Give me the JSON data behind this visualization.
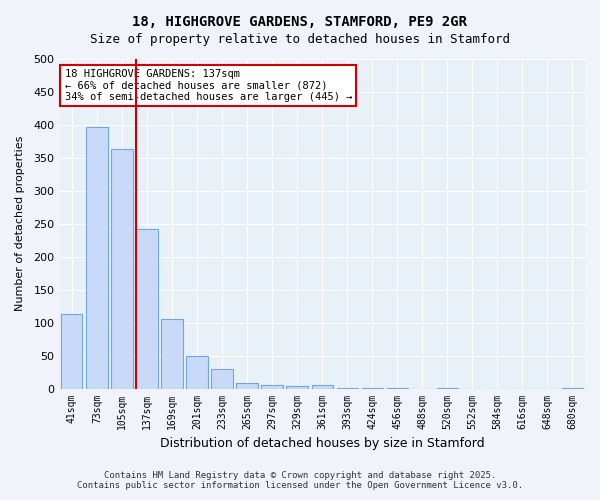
{
  "title_line1": "18, HIGHGROVE GARDENS, STAMFORD, PE9 2GR",
  "title_line2": "Size of property relative to detached houses in Stamford",
  "xlabel": "Distribution of detached houses by size in Stamford",
  "ylabel": "Number of detached properties",
  "categories": [
    "41sqm",
    "73sqm",
    "105sqm",
    "137sqm",
    "169sqm",
    "201sqm",
    "233sqm",
    "265sqm",
    "297sqm",
    "329sqm",
    "361sqm",
    "393sqm",
    "424sqm",
    "456sqm",
    "488sqm",
    "520sqm",
    "552sqm",
    "584sqm",
    "616sqm",
    "648sqm",
    "680sqm"
  ],
  "values": [
    113,
    397,
    363,
    242,
    105,
    50,
    29,
    8,
    5,
    4,
    6,
    1,
    1,
    1,
    0,
    1,
    0,
    0,
    0,
    0,
    1
  ],
  "bar_color": "#c9daf8",
  "bar_edge_color": "#6fa8dc",
  "vline_x": 3,
  "vline_color": "#cc0000",
  "annotation_title": "18 HIGHGROVE GARDENS: 137sqm",
  "annotation_line2": "← 66% of detached houses are smaller (872)",
  "annotation_line3": "34% of semi-detached houses are larger (445) →",
  "annotation_box_color": "#cc0000",
  "annotation_bg": "#ffffff",
  "ylim": [
    0,
    500
  ],
  "yticks": [
    0,
    50,
    100,
    150,
    200,
    250,
    300,
    350,
    400,
    450,
    500
  ],
  "bg_color": "#e8f0f8",
  "grid_color": "#ffffff",
  "footer_line1": "Contains HM Land Registry data © Crown copyright and database right 2025.",
  "footer_line2": "Contains public sector information licensed under the Open Government Licence v3.0."
}
